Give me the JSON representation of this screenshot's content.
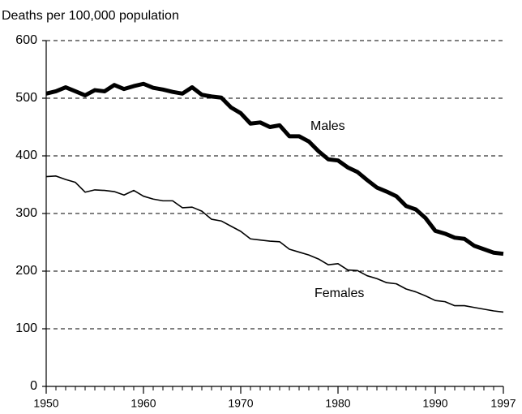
{
  "chart_data": {
    "type": "line",
    "ylabel": "Deaths per 100,000 population",
    "x": [
      1950,
      1951,
      1952,
      1953,
      1954,
      1955,
      1956,
      1957,
      1958,
      1959,
      1960,
      1961,
      1962,
      1963,
      1964,
      1965,
      1966,
      1967,
      1968,
      1969,
      1970,
      1971,
      1972,
      1973,
      1974,
      1975,
      1976,
      1977,
      1978,
      1979,
      1980,
      1981,
      1982,
      1983,
      1984,
      1985,
      1986,
      1987,
      1988,
      1989,
      1990,
      1991,
      1992,
      1993,
      1994,
      1995,
      1996,
      1997
    ],
    "series": [
      {
        "name": "Males",
        "color": "#000000",
        "width": 5,
        "values": [
          508,
          512,
          519,
          512,
          505,
          514,
          512,
          523,
          516,
          521,
          525,
          518,
          515,
          511,
          508,
          519,
          506,
          503,
          501,
          484,
          474,
          456,
          458,
          450,
          453,
          434,
          434,
          425,
          408,
          394,
          392,
          380,
          372,
          358,
          345,
          338,
          330,
          313,
          307,
          292,
          270,
          265,
          258,
          256,
          244,
          238,
          232,
          230
        ]
      },
      {
        "name": "Females",
        "color": "#000000",
        "width": 1.6,
        "values": [
          364,
          365,
          359,
          354,
          337,
          341,
          340,
          338,
          332,
          340,
          330,
          325,
          322,
          322,
          310,
          311,
          304,
          290,
          287,
          278,
          269,
          256,
          254,
          252,
          251,
          238,
          233,
          228,
          221,
          211,
          213,
          202,
          201,
          192,
          187,
          180,
          178,
          169,
          164,
          157,
          149,
          147,
          140,
          140,
          137,
          134,
          131,
          129
        ]
      }
    ],
    "xlim": [
      1950,
      1997
    ],
    "xticks": [
      1950,
      1960,
      1970,
      1980,
      1990,
      1997
    ],
    "ylim": [
      0,
      600
    ],
    "yticks": [
      0,
      100,
      200,
      300,
      400,
      500,
      600
    ],
    "grid": true,
    "grid_style": "dashed"
  }
}
